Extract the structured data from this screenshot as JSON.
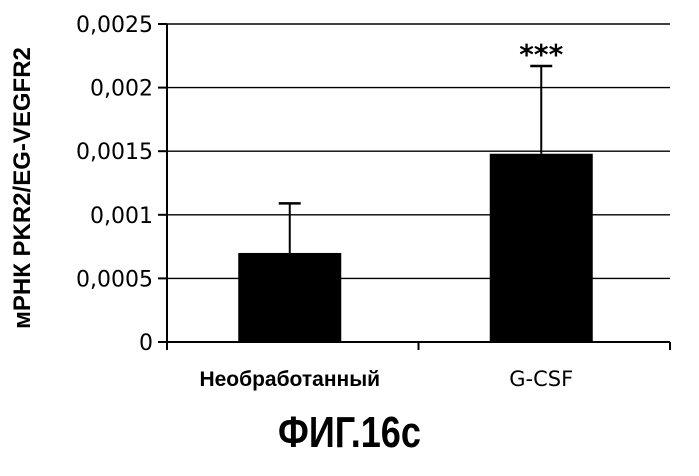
{
  "figure_caption": "ФИГ.16c",
  "chart_data": {
    "type": "bar",
    "categories": [
      "Необработанный",
      "G-CSF"
    ],
    "values": [
      0.0007,
      0.00148
    ],
    "error_upper": [
      0.00109,
      0.00217
    ],
    "annotations": [
      "",
      "***"
    ],
    "ylabel": "мРНК PKR2/EG-VEGFR2",
    "xlabel": "",
    "ylim": [
      0,
      0.0025
    ],
    "yticks": [
      0,
      0.0005,
      0.001,
      0.0015,
      0.002,
      0.0025
    ],
    "ytick_labels": [
      "0",
      "0,0005",
      "0,001",
      "0,0015",
      "0,002",
      "0,0025"
    ],
    "grid": true,
    "bar_color": "#000000"
  }
}
